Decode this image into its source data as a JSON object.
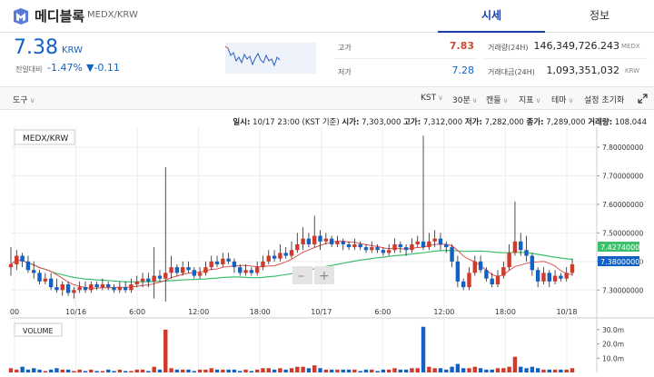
{
  "header": {
    "coin_name": "메디블록",
    "pair": "MEDX/KRW",
    "tabs": [
      "시세",
      "정보"
    ]
  },
  "ticker": {
    "price": "7.38",
    "unit": "KRW",
    "change_label": "전일대비",
    "change_rate": "-1.47%",
    "change_amount": "▼-0.11"
  },
  "stats": {
    "high_label": "고가",
    "high": "7.83",
    "low_label": "저가",
    "low": "7.28",
    "volume_label": "거래량(24H)",
    "volume": "146,349,726.243",
    "volume_unit": "MEDX",
    "value_label": "거래대금(24H)",
    "value": "1,093,351,032",
    "value_unit": "KRW"
  },
  "toolbar": {
    "tools": "도구",
    "items": [
      "KST",
      "30분",
      "캔들",
      "지표",
      "테마",
      "설정 초기화"
    ]
  },
  "ohlc": {
    "datetime_label": "일시:",
    "datetime": "10/17 23:00 (KST 기준)",
    "open_label": "시가:",
    "open": "7,303,000",
    "high_label": "고가:",
    "high": "7,312,000",
    "low_label": "저가:",
    "low": "7,282,000",
    "close_label": "종가:",
    "close": "7,289,000",
    "vol_label": "거래량:",
    "vol": "108.044"
  },
  "chart_data": {
    "type": "candlestick",
    "title": "MEDX/KRW",
    "y_ticks": [
      "7.80000000",
      "7.70000000",
      "7.60000000",
      "7.50000000",
      "7.40000000",
      "7.30000000"
    ],
    "y_range": [
      7.25,
      7.87
    ],
    "x_ticks": [
      "00",
      "10/16",
      "6:00",
      "12:00",
      "18:00",
      "10/17",
      "6:00",
      "12:00",
      "18:00",
      "10/18"
    ],
    "price_tags": {
      "ma_value": "7.42740000",
      "last_value": "7.38000000"
    },
    "volume_label": "VOLUME",
    "volume_ticks": [
      "30.0m",
      "20.0m",
      "10.0m"
    ],
    "candles": [
      [
        7.38,
        7.39,
        7.45,
        7.35
      ],
      [
        7.39,
        7.42,
        7.44,
        7.37
      ],
      [
        7.42,
        7.4,
        7.43,
        7.38
      ],
      [
        7.4,
        7.37,
        7.42,
        7.36
      ],
      [
        7.37,
        7.36,
        7.4,
        7.34
      ],
      [
        7.36,
        7.33,
        7.37,
        7.32
      ],
      [
        7.33,
        7.34,
        7.36,
        7.32
      ],
      [
        7.34,
        7.31,
        7.36,
        7.3
      ],
      [
        7.31,
        7.3,
        7.34,
        7.29
      ],
      [
        7.3,
        7.32,
        7.33,
        7.28
      ],
      [
        7.32,
        7.29,
        7.33,
        7.28
      ],
      [
        7.29,
        7.3,
        7.31,
        7.27
      ],
      [
        7.3,
        7.31,
        7.33,
        7.29
      ],
      [
        7.31,
        7.3,
        7.33,
        7.29
      ],
      [
        7.3,
        7.32,
        7.33,
        7.29
      ],
      [
        7.32,
        7.31,
        7.33,
        7.3
      ],
      [
        7.31,
        7.32,
        7.34,
        7.3
      ],
      [
        7.32,
        7.31,
        7.33,
        7.3
      ],
      [
        7.31,
        7.3,
        7.32,
        7.29
      ],
      [
        7.3,
        7.31,
        7.33,
        7.29
      ],
      [
        7.31,
        7.3,
        7.33,
        7.29
      ],
      [
        7.3,
        7.32,
        7.34,
        7.29
      ],
      [
        7.32,
        7.33,
        7.35,
        7.31
      ],
      [
        7.33,
        7.34,
        7.36,
        7.31
      ],
      [
        7.34,
        7.33,
        7.36,
        7.31
      ],
      [
        7.33,
        7.35,
        7.45,
        7.27
      ],
      [
        7.35,
        7.34,
        7.37,
        7.33
      ],
      [
        7.34,
        7.36,
        7.73,
        7.26
      ],
      [
        7.36,
        7.38,
        7.42,
        7.34
      ],
      [
        7.38,
        7.36,
        7.39,
        7.35
      ],
      [
        7.36,
        7.38,
        7.4,
        7.35
      ],
      [
        7.38,
        7.37,
        7.4,
        7.36
      ],
      [
        7.37,
        7.35,
        7.38,
        7.34
      ],
      [
        7.35,
        7.36,
        7.38,
        7.34
      ],
      [
        7.36,
        7.38,
        7.4,
        7.35
      ],
      [
        7.38,
        7.4,
        7.42,
        7.37
      ],
      [
        7.4,
        7.39,
        7.42,
        7.38
      ],
      [
        7.39,
        7.41,
        7.43,
        7.38
      ],
      [
        7.41,
        7.4,
        7.43,
        7.39
      ],
      [
        7.4,
        7.38,
        7.41,
        7.36
      ],
      [
        7.38,
        7.36,
        7.39,
        7.35
      ],
      [
        7.36,
        7.37,
        7.39,
        7.35
      ],
      [
        7.37,
        7.36,
        7.38,
        7.35
      ],
      [
        7.36,
        7.38,
        7.4,
        7.35
      ],
      [
        7.38,
        7.4,
        7.42,
        7.37
      ],
      [
        7.4,
        7.42,
        7.44,
        7.39
      ],
      [
        7.42,
        7.41,
        7.44,
        7.4
      ],
      [
        7.41,
        7.43,
        7.46,
        7.4
      ],
      [
        7.43,
        7.42,
        7.45,
        7.41
      ],
      [
        7.42,
        7.44,
        7.47,
        7.41
      ],
      [
        7.44,
        7.46,
        7.5,
        7.43
      ],
      [
        7.46,
        7.48,
        7.52,
        7.44
      ],
      [
        7.48,
        7.46,
        7.5,
        7.45
      ],
      [
        7.46,
        7.49,
        7.56,
        7.45
      ],
      [
        7.49,
        7.47,
        7.51,
        7.44
      ],
      [
        7.47,
        7.48,
        7.5,
        7.46
      ],
      [
        7.48,
        7.46,
        7.49,
        7.45
      ],
      [
        7.46,
        7.47,
        7.49,
        7.45
      ],
      [
        7.47,
        7.46,
        7.48,
        7.44
      ],
      [
        7.46,
        7.45,
        7.47,
        7.44
      ],
      [
        7.45,
        7.46,
        7.48,
        7.44
      ],
      [
        7.46,
        7.45,
        7.47,
        7.44
      ],
      [
        7.45,
        7.44,
        7.46,
        7.43
      ],
      [
        7.44,
        7.45,
        7.47,
        7.43
      ],
      [
        7.45,
        7.44,
        7.46,
        7.43
      ],
      [
        7.44,
        7.43,
        7.45,
        7.42
      ],
      [
        7.43,
        7.44,
        7.46,
        7.42
      ],
      [
        7.44,
        7.46,
        7.48,
        7.43
      ],
      [
        7.46,
        7.45,
        7.47,
        7.43
      ],
      [
        7.45,
        7.44,
        7.46,
        7.42
      ],
      [
        7.44,
        7.46,
        7.48,
        7.43
      ],
      [
        7.46,
        7.47,
        7.49,
        7.45
      ],
      [
        7.47,
        7.45,
        7.84,
        7.44
      ],
      [
        7.45,
        7.47,
        7.5,
        7.44
      ],
      [
        7.47,
        7.48,
        7.51,
        7.45
      ],
      [
        7.48,
        7.46,
        7.5,
        7.44
      ],
      [
        7.46,
        7.45,
        7.47,
        7.43
      ],
      [
        7.45,
        7.4,
        7.46,
        7.38
      ],
      [
        7.4,
        7.33,
        7.42,
        7.31
      ],
      [
        7.33,
        7.31,
        7.34,
        7.3
      ],
      [
        7.31,
        7.36,
        7.38,
        7.3
      ],
      [
        7.36,
        7.4,
        7.42,
        7.35
      ],
      [
        7.4,
        7.37,
        7.42,
        7.36
      ],
      [
        7.37,
        7.34,
        7.38,
        7.33
      ],
      [
        7.34,
        7.32,
        7.36,
        7.31
      ],
      [
        7.32,
        7.35,
        7.37,
        7.31
      ],
      [
        7.35,
        7.38,
        7.4,
        7.34
      ],
      [
        7.38,
        7.43,
        7.46,
        7.37
      ],
      [
        7.43,
        7.47,
        7.61,
        7.42
      ],
      [
        7.47,
        7.44,
        7.5,
        7.42
      ],
      [
        7.44,
        7.42,
        7.49,
        7.4
      ],
      [
        7.42,
        7.37,
        7.43,
        7.35
      ],
      [
        7.37,
        7.33,
        7.38,
        7.31
      ],
      [
        7.33,
        7.36,
        7.38,
        7.32
      ],
      [
        7.36,
        7.33,
        7.37,
        7.31
      ],
      [
        7.33,
        7.35,
        7.37,
        7.32
      ],
      [
        7.35,
        7.34,
        7.36,
        7.33
      ],
      [
        7.34,
        7.36,
        7.38,
        7.33
      ],
      [
        7.36,
        7.39,
        7.41,
        7.35
      ]
    ],
    "volumes": [
      3,
      2,
      4,
      2,
      3,
      2,
      1,
      2,
      3,
      2,
      2,
      1,
      2,
      1,
      2,
      1,
      1,
      2,
      1,
      2,
      1,
      1,
      2,
      2,
      1,
      4,
      2,
      30,
      3,
      2,
      2,
      2,
      1,
      2,
      2,
      3,
      2,
      2,
      2,
      2,
      1,
      2,
      1,
      2,
      3,
      3,
      2,
      3,
      2,
      3,
      4,
      4,
      3,
      5,
      3,
      2,
      2,
      2,
      2,
      2,
      2,
      1,
      2,
      2,
      1,
      2,
      2,
      3,
      2,
      2,
      3,
      3,
      32,
      4,
      3,
      3,
      2,
      4,
      6,
      3,
      3,
      4,
      3,
      2,
      2,
      3,
      3,
      4,
      11,
      4,
      3,
      4,
      3,
      2,
      2,
      2,
      2,
      2,
      3
    ]
  }
}
